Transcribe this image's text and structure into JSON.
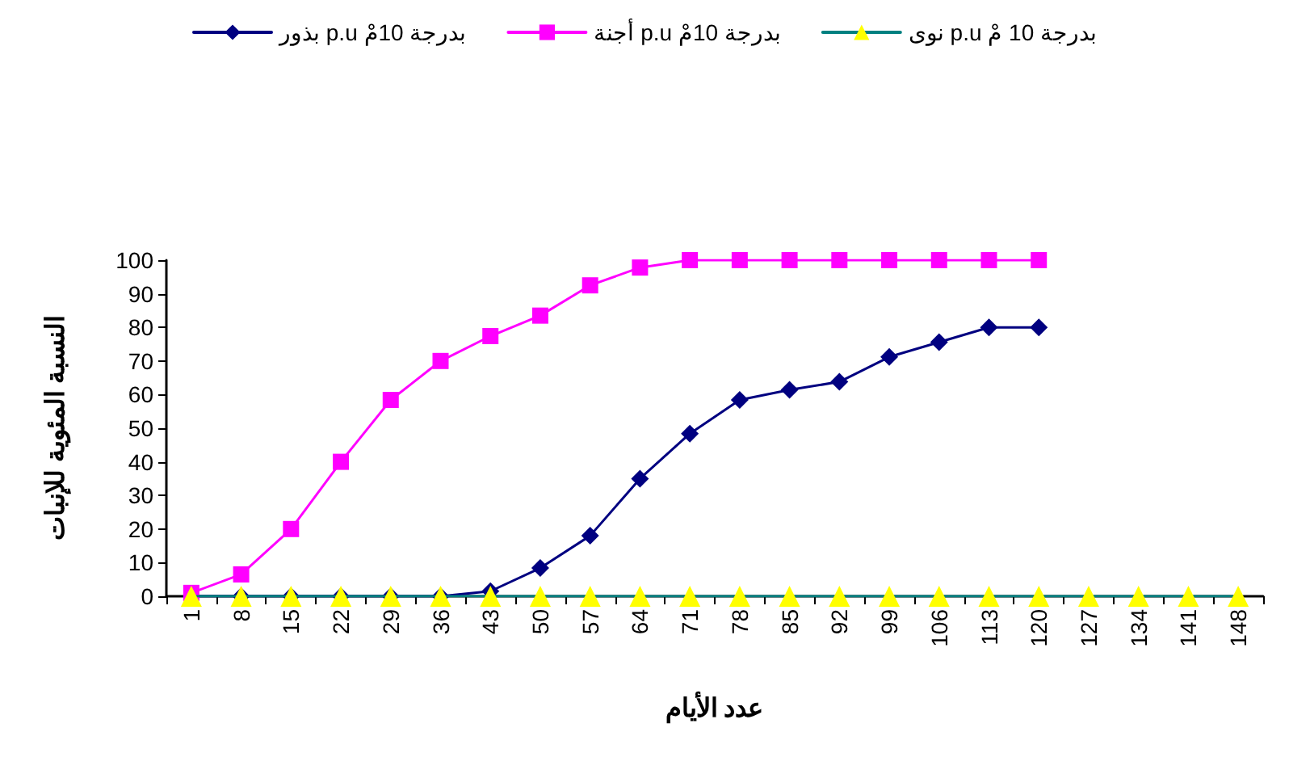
{
  "chart_data": {
    "type": "line",
    "xlabel": "عدد الأيام",
    "ylabel": "النسبة المئوية للإنبات",
    "categories": [
      "1",
      "8",
      "15",
      "22",
      "29",
      "36",
      "43",
      "50",
      "57",
      "64",
      "71",
      "78",
      "85",
      "92",
      "99",
      "106",
      "113",
      "120",
      "127",
      "134",
      "141",
      "148"
    ],
    "ylim": [
      0,
      100
    ],
    "yticks": [
      0,
      10,
      20,
      30,
      40,
      50,
      60,
      70,
      80,
      90,
      100
    ],
    "grid": false,
    "legend": "top",
    "series": [
      {
        "name": "بذور p.u بدرجة 10مْ",
        "color": "#000080",
        "marker": "diamond",
        "values": [
          0,
          0,
          0,
          0,
          0,
          0,
          1.5,
          8.4,
          18,
          35,
          48.4,
          58.4,
          61.4,
          63.8,
          71.2,
          75.6,
          80,
          80,
          null,
          null,
          null,
          null
        ]
      },
      {
        "name": "أجنة p.u بدرجة 10مْ",
        "color": "#ff00ff",
        "marker": "square",
        "values": [
          1,
          6.5,
          20,
          40,
          58.4,
          70,
          77.4,
          83.5,
          92.5,
          97.8,
          100,
          100,
          100,
          100,
          100,
          100,
          100,
          100,
          null,
          null,
          null,
          null
        ]
      },
      {
        "name": "نوى p.u بدرجة 10 مْ",
        "color": "#008080",
        "marker": "triangle",
        "values": [
          0,
          0,
          0,
          0,
          0,
          0,
          0,
          0,
          0,
          0,
          0,
          0,
          0,
          0,
          0,
          0,
          0,
          0,
          0,
          0,
          0,
          0
        ]
      }
    ]
  }
}
